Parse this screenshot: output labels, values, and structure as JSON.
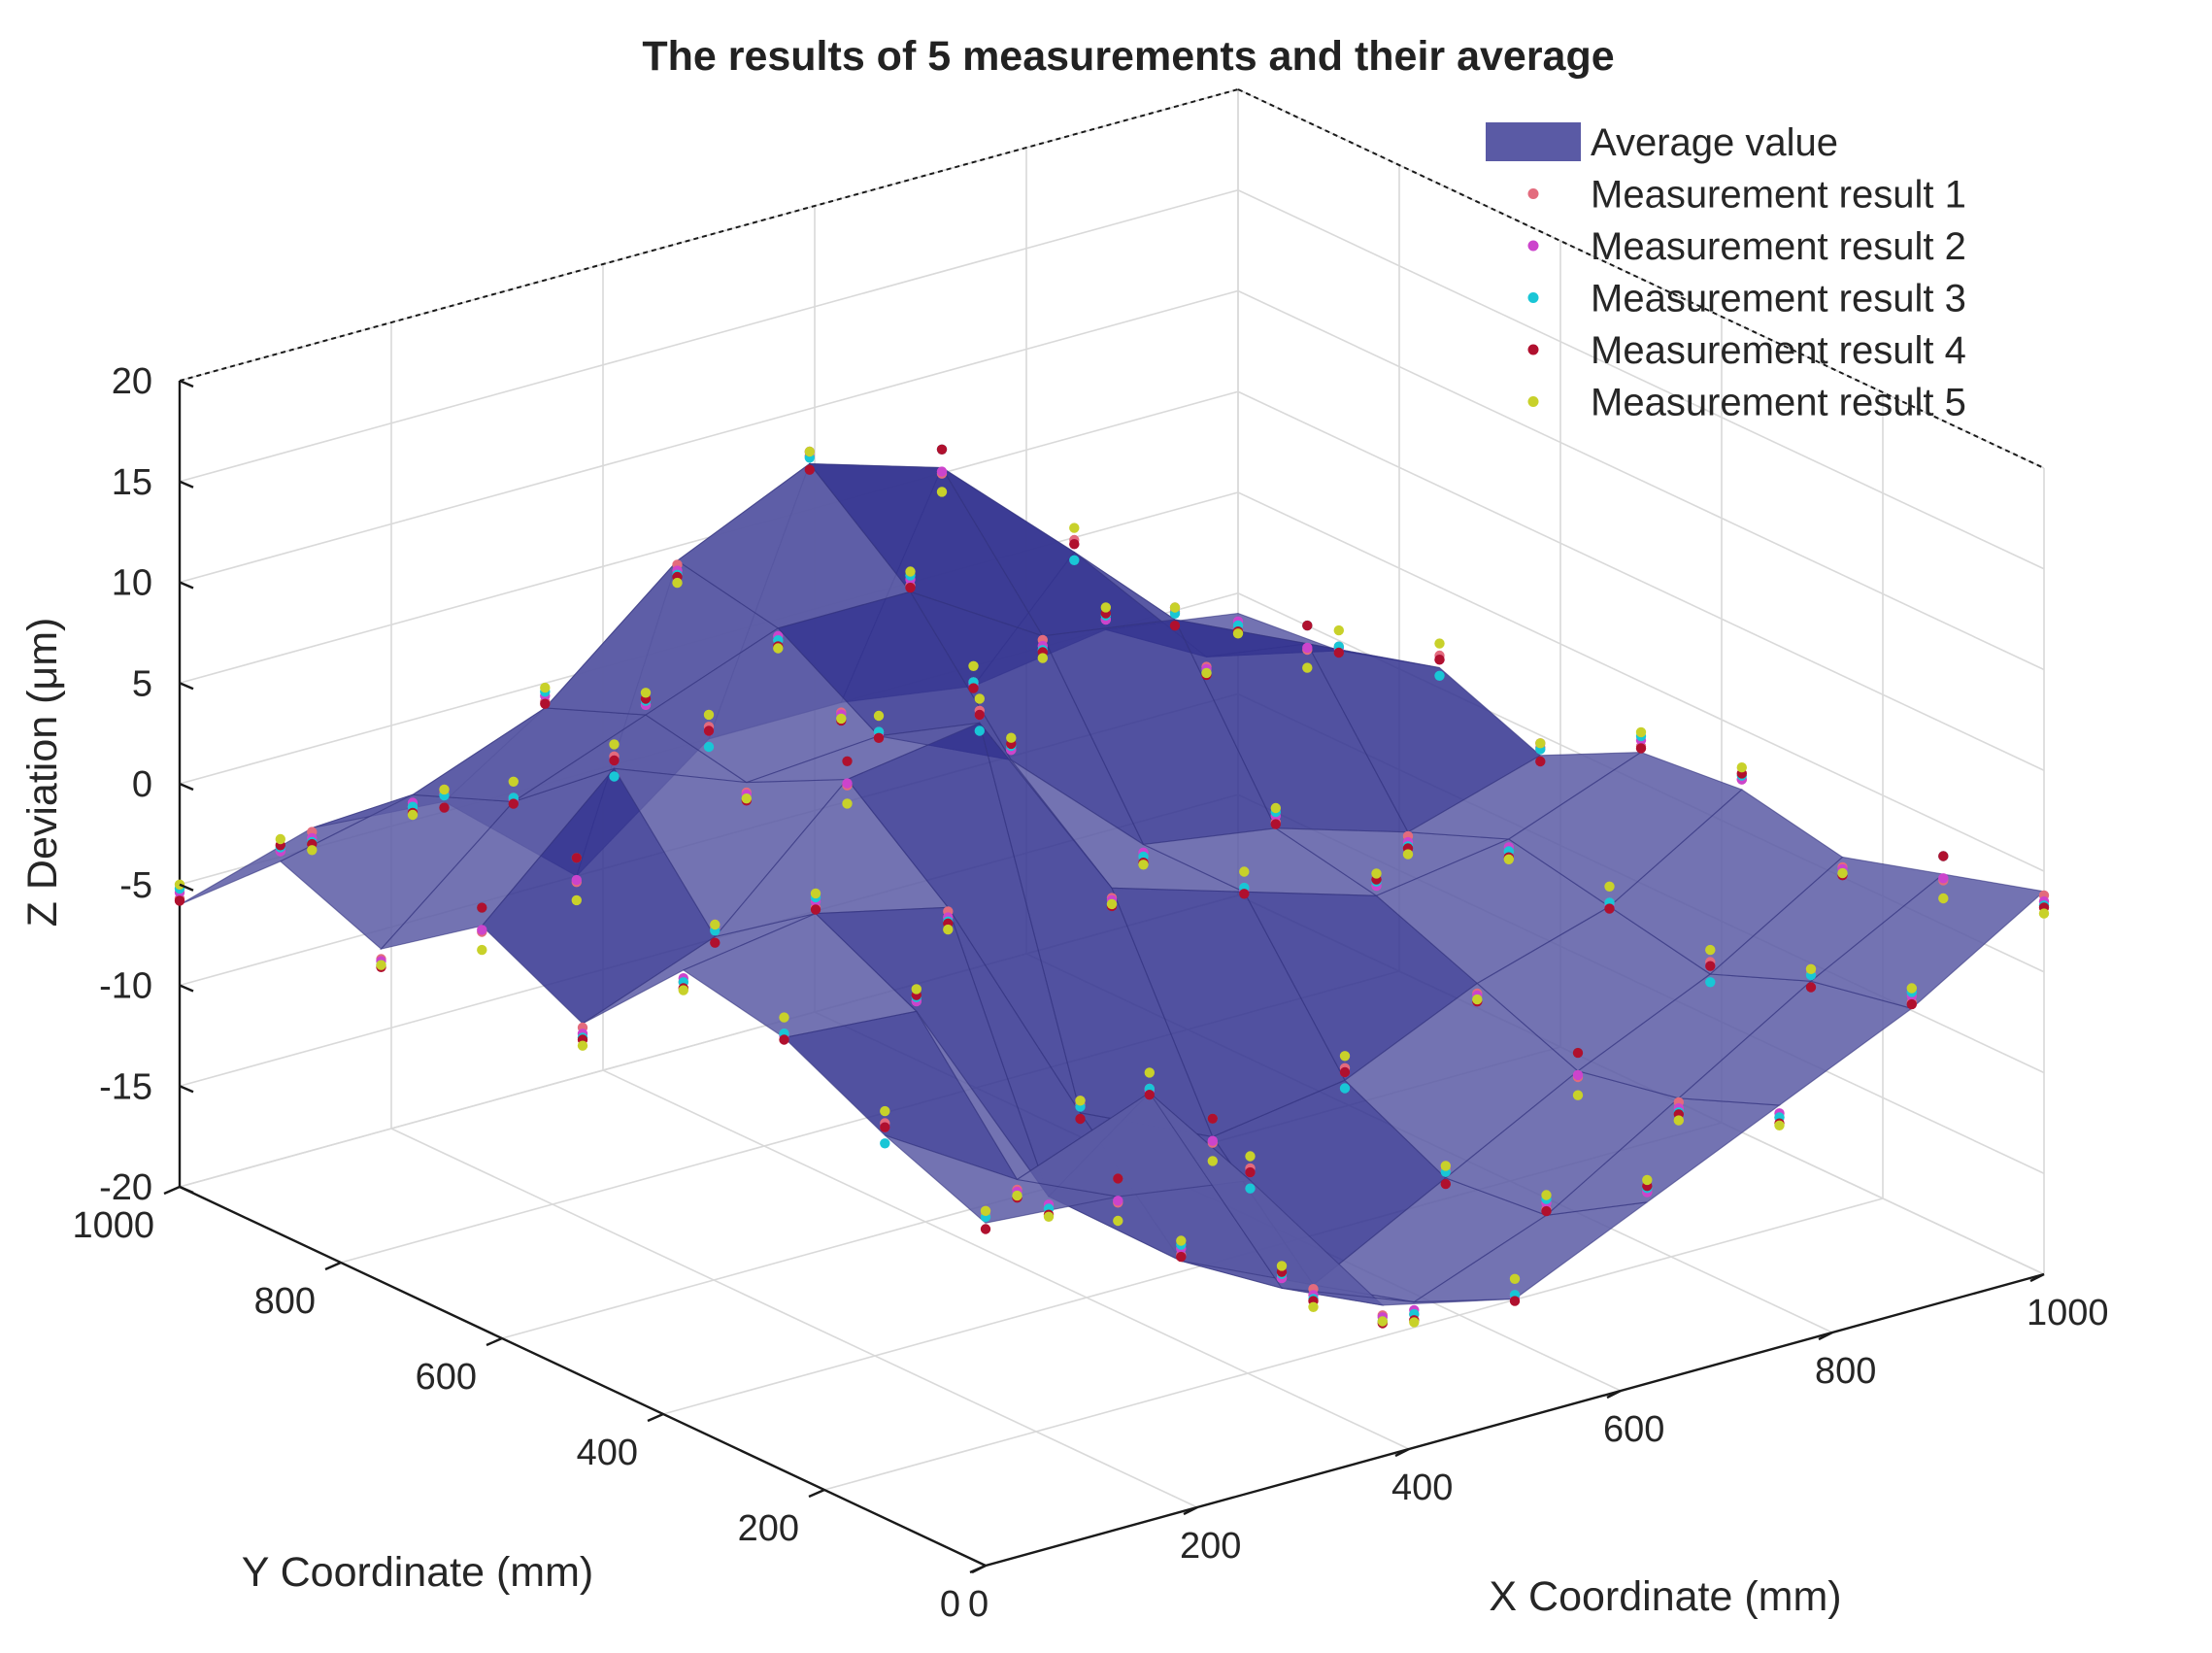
{
  "chart_data": {
    "type": "surface3d",
    "title": "The results of 5 measurements and their average",
    "xlabel": "X Coordinate (mm)",
    "ylabel": "Y Coordinate (mm)",
    "zlabel": "Z Deviation (μm)",
    "xlim": [
      0,
      1000
    ],
    "ylim": [
      0,
      1000
    ],
    "zlim": [
      -20,
      20
    ],
    "x_ticks": [
      "0",
      "200",
      "400",
      "600",
      "800",
      "1000"
    ],
    "y_ticks": [
      "0",
      "200",
      "400",
      "600",
      "800",
      "1000"
    ],
    "z_ticks": [
      "20",
      "15",
      "10",
      "5",
      "0",
      "-5",
      "-10",
      "-15",
      "-20"
    ],
    "grid": true,
    "legend_position": "top-right",
    "x_grid": [
      0,
      125,
      250,
      375,
      500,
      625,
      750,
      875,
      1000
    ],
    "y_grid": [
      0,
      125,
      250,
      375,
      500,
      625,
      750,
      875,
      1000
    ],
    "average_surface_z": [
      [
        -3,
        -3.5,
        -4.5,
        -12.5,
        -14,
        -11,
        -8,
        -5,
        -1
      ],
      [
        -1,
        -5,
        -2.5,
        -14,
        -16.5,
        -14,
        -10,
        -6,
        -2.5
      ],
      [
        1.5,
        1,
        -10,
        -15,
        -18,
        -14.5,
        -11,
        -8,
        -4
      ],
      [
        2.5,
        3.5,
        2,
        -10,
        -13,
        -12,
        -9,
        -7,
        -3
      ],
      [
        -2.5,
        0,
        6,
        7,
        -3,
        -5,
        -7,
        -6,
        -3.5
      ],
      [
        0,
        6,
        3.5,
        4,
        1,
        -5,
        -6,
        -8,
        -6
      ],
      [
        -3.5,
        2,
        4.5,
        7,
        7,
        3,
        2,
        -1,
        -4
      ],
      [
        -1.5,
        0,
        2.5,
        8,
        11,
        9,
        3,
        -4,
        -5.5
      ],
      [
        -6,
        -4,
        -4.5,
        -10,
        -5,
        -5,
        -6,
        -5,
        -6
      ]
    ],
    "series": [
      {
        "name": "Average value",
        "render": "surface",
        "color": "#3c3c96"
      },
      {
        "name": "Measurement result 1",
        "render": "markers",
        "color": "#e36b7d",
        "offsets_um": [
          0.4,
          -0.3,
          0.6,
          -0.5,
          0.2,
          0.5,
          -0.6,
          0.3,
          -0.2
        ]
      },
      {
        "name": "Measurement result 2",
        "render": "markers",
        "color": "#cc44cc",
        "offsets_um": [
          -0.5,
          0.6,
          -0.2,
          0.4,
          -0.6,
          0.1,
          0.5,
          -0.4,
          0.6
        ]
      },
      {
        "name": "Measurement result 3",
        "render": "markers",
        "color": "#19c6d6",
        "offsets_um": [
          0.8,
          -0.7,
          0.3,
          0.9,
          -0.4,
          -0.8,
          0.2,
          0.7,
          -0.6
        ]
      },
      {
        "name": "Measurement result 4",
        "render": "markers",
        "color": "#b0102e",
        "offsets_um": [
          -0.9,
          0.2,
          -0.8,
          -0.3,
          0.9,
          0.4,
          -0.9,
          -0.1,
          0.8
        ]
      },
      {
        "name": "Measurement result 5",
        "render": "markers",
        "color": "#c8d12a",
        "offsets_um": [
          1.1,
          -1.0,
          1.0,
          -1.1,
          0.6,
          -1.2,
          1.2,
          -0.8,
          1.0
        ]
      }
    ],
    "colors": {
      "surface_face": "#5a5aa5",
      "surface_face_alt": "#33338f",
      "surface_edge": "#34347f",
      "axes_line": "#1a1a1a",
      "grid": "#d9d9d9"
    }
  }
}
